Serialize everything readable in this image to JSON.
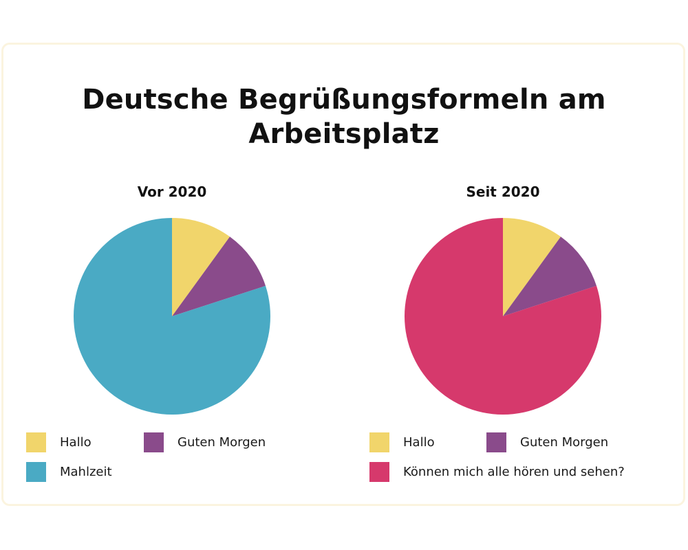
{
  "title_lines": [
    "Deutsche Begrüßungsformeln am",
    "Arbeitsplatz"
  ],
  "colors": {
    "hallo": "#f1d56b",
    "guten_morgen": "#8a4b8b",
    "mahlzeit": "#4aaac4",
    "koennen": "#d6396c"
  },
  "chart_data": [
    {
      "type": "pie",
      "title": "Vor 2020",
      "categories": [
        "Hallo",
        "Guten Morgen",
        "Mahlzeit"
      ],
      "values": [
        10,
        10,
        80
      ],
      "colors": [
        "#f1d56b",
        "#8a4b8b",
        "#4aaac4"
      ],
      "legend": "bottom"
    },
    {
      "type": "pie",
      "title": "Seit 2020",
      "categories": [
        "Hallo",
        "Guten Morgen",
        "Können mich alle hören und sehen?"
      ],
      "values": [
        10,
        10,
        80
      ],
      "colors": [
        "#f1d56b",
        "#8a4b8b",
        "#d6396c"
      ],
      "legend": "bottom"
    }
  ]
}
